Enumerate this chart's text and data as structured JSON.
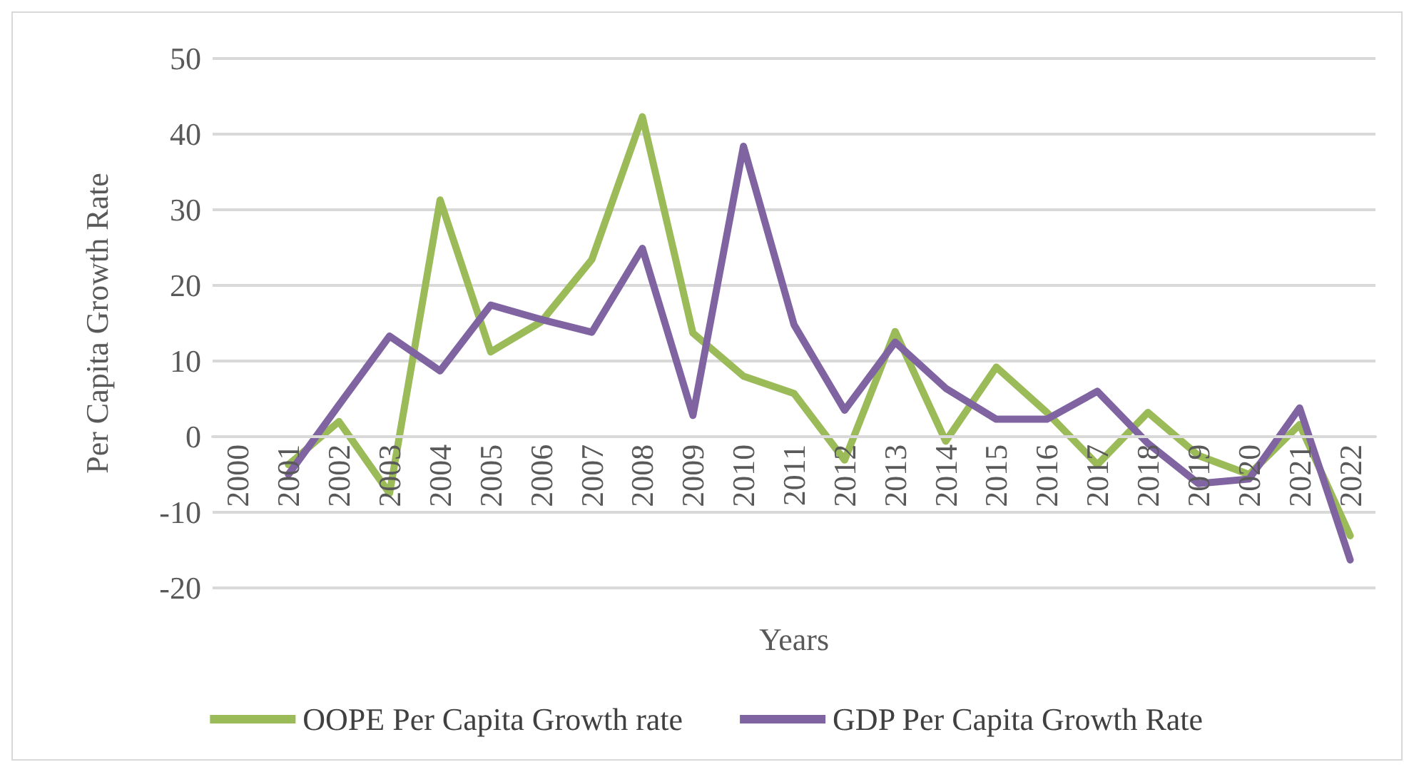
{
  "chart_data": {
    "type": "line",
    "xlabel": "Years",
    "ylabel": "Per Capita Growth Rate",
    "categories": [
      "2000",
      "2001",
      "2002",
      "2003",
      "2004",
      "2005",
      "2006",
      "2007",
      "2008",
      "2009",
      "2010",
      "2011",
      "2012",
      "2013",
      "2014",
      "2015",
      "2016",
      "2017",
      "2018",
      "2019",
      "2020",
      "2021",
      "2022"
    ],
    "series": [
      {
        "name": "OOPE Per Capita Growth rate",
        "color": "#9bbb59",
        "values": [
          null,
          -3.7,
          2.0,
          -7.5,
          31.3,
          11.2,
          15.2,
          23.4,
          42.3,
          13.7,
          8.0,
          5.7,
          -3.1,
          13.9,
          -0.6,
          9.2,
          3.2,
          -3.7,
          3.2,
          -2.5,
          -5.0,
          1.6,
          -13.1
        ]
      },
      {
        "name": "GDP Per Capita Growth Rate",
        "color": "#8064a2",
        "values": [
          null,
          -5.0,
          4.2,
          13.3,
          8.7,
          17.4,
          15.5,
          13.8,
          24.9,
          2.8,
          38.4,
          14.8,
          3.5,
          12.5,
          6.4,
          2.3,
          2.3,
          6.0,
          -0.9,
          -6.2,
          -5.6,
          3.8,
          -16.3
        ]
      }
    ],
    "ylim": [
      -20,
      50
    ],
    "yticks": [
      -20,
      -10,
      0,
      10,
      20,
      30,
      40,
      50
    ],
    "grid": "y",
    "legend": "bottom",
    "marker": "none",
    "line_style": "solid"
  }
}
